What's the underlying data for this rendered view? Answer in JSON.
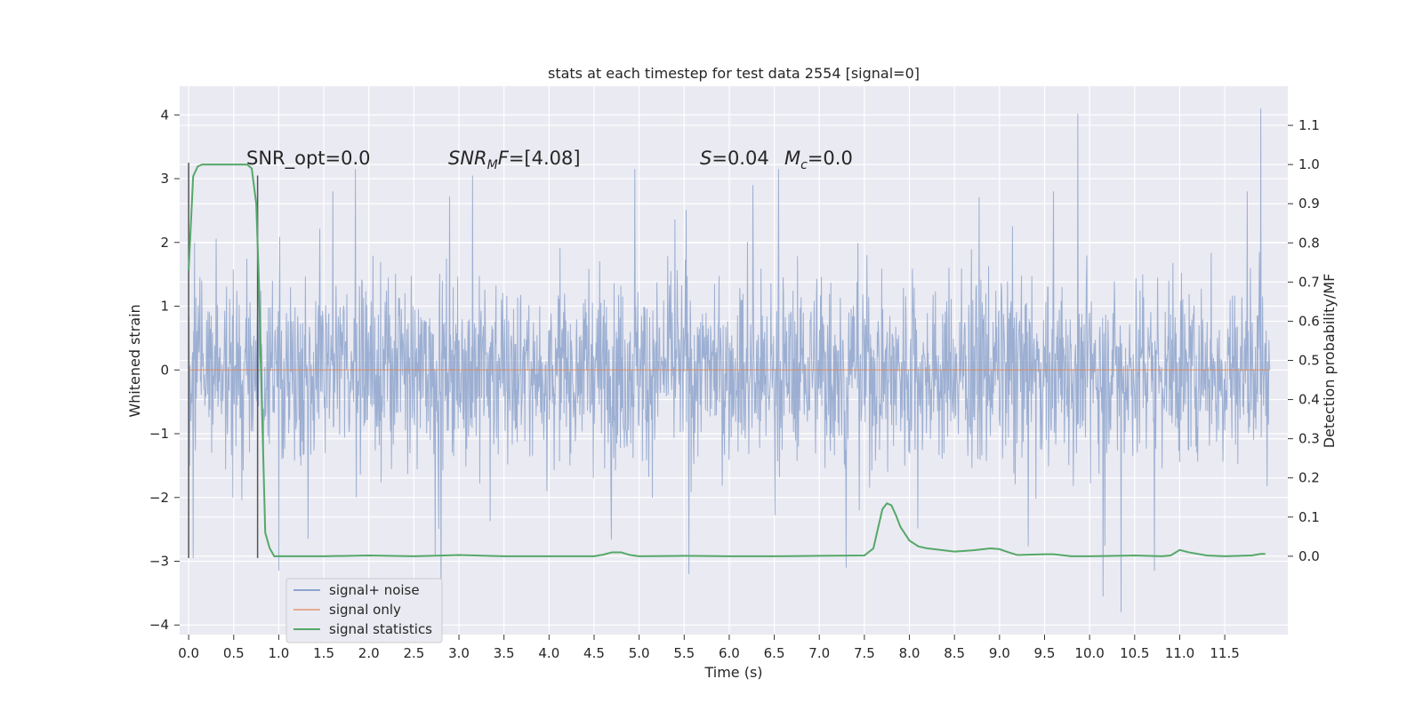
{
  "chart_data": {
    "type": "line",
    "title": "stats at each timestep for test data 2554 [signal=0]",
    "xlabel": "Time (s)",
    "ylabel": "Whitened strain",
    "ylabel_right": "Detection probability/MF",
    "xlim": [
      -0.1,
      12.2
    ],
    "ylim": [
      -4.15,
      4.45
    ],
    "ylim_right": [
      -0.2,
      1.2
    ],
    "x_ticks": [
      "0.0",
      "0.5",
      "1.0",
      "1.5",
      "2.0",
      "2.5",
      "3.0",
      "3.5",
      "4.0",
      "4.5",
      "5.0",
      "5.5",
      "6.0",
      "6.5",
      "7.0",
      "7.5",
      "8.0",
      "8.5",
      "9.0",
      "9.5",
      "10.0",
      "10.5",
      "11.0",
      "11.5"
    ],
    "y_ticks": [
      "4",
      "3",
      "2",
      "1",
      "0",
      "−1",
      "−2",
      "−3",
      "−4"
    ],
    "y_ticks_right": [
      "1.1",
      "1.0",
      "0.9",
      "0.8",
      "0.7",
      "0.6",
      "0.5",
      "0.4",
      "0.3",
      "0.2",
      "0.1",
      "0.0"
    ],
    "grid": true,
    "legend_position": "bottom-left",
    "annotations": {
      "snr_opt": "SNR_opt=0.0",
      "snr_mf_prefix": "SNR",
      "snr_mf_sub": "M",
      "snr_mf_suffix": "F=[4.08]",
      "s_label": "S",
      "s_value": "=0.04",
      "mc_label": "M",
      "mc_sub": "c",
      "mc_value": "=0.0"
    },
    "series": [
      {
        "name": "signal+ noise",
        "axis": "left",
        "color": "#8ea5cc",
        "note": "noise",
        "x_range": [
          0.0,
          12.0
        ],
        "band_approx": [
          -1.5,
          1.4
        ],
        "spikes": [
          [
            9.87,
            4.02
          ],
          [
            11.9,
            4.1
          ],
          [
            2.8,
            -3.8
          ],
          [
            10.35,
            -3.8
          ],
          [
            10.15,
            -3.55
          ],
          [
            5.55,
            -3.2
          ],
          [
            1.0,
            -3.15
          ],
          [
            7.3,
            -3.1
          ],
          [
            10.72,
            -3.15
          ],
          [
            1.6,
            2.8
          ],
          [
            9.6,
            2.8
          ],
          [
            11.75,
            2.8
          ],
          [
            4.95,
            3.15
          ],
          [
            6.55,
            3.15
          ],
          [
            1.85,
            3.15
          ],
          [
            3.15,
            3.05
          ],
          [
            0.05,
            -2.95
          ]
        ]
      },
      {
        "name": "signal only",
        "axis": "left",
        "color": "#dd8452",
        "x": [
          0.0,
          12.0
        ],
        "y": [
          0.0,
          0.0
        ]
      },
      {
        "name": "signal statistics",
        "axis": "right",
        "color": "#55a868",
        "x": [
          0.0,
          0.05,
          0.1,
          0.15,
          0.2,
          0.3,
          0.4,
          0.5,
          0.6,
          0.65,
          0.7,
          0.75,
          0.78,
          0.8,
          0.85,
          0.9,
          0.95,
          1.0,
          1.5,
          2.0,
          2.5,
          3.0,
          3.5,
          4.0,
          4.5,
          4.6,
          4.7,
          4.8,
          4.9,
          5.0,
          5.5,
          6.0,
          6.5,
          7.0,
          7.5,
          7.6,
          7.65,
          7.7,
          7.75,
          7.8,
          7.85,
          7.9,
          8.0,
          8.1,
          8.2,
          8.5,
          8.7,
          8.9,
          9.0,
          9.1,
          9.2,
          9.5,
          9.6,
          9.8,
          10.0,
          10.5,
          10.8,
          10.9,
          11.0,
          11.1,
          11.3,
          11.5,
          11.8,
          11.9,
          11.95
        ],
        "y": [
          0.73,
          0.97,
          0.995,
          1.0,
          1.0,
          1.0,
          1.0,
          1.0,
          1.0,
          1.0,
          0.99,
          0.9,
          0.7,
          0.5,
          0.06,
          0.02,
          0.0,
          0.0,
          0.0,
          0.002,
          0.0,
          0.003,
          0.0,
          0.0,
          0.0,
          0.004,
          0.01,
          0.01,
          0.003,
          0.0,
          0.001,
          0.0,
          0.0,
          0.001,
          0.002,
          0.02,
          0.07,
          0.12,
          0.135,
          0.13,
          0.105,
          0.075,
          0.04,
          0.025,
          0.02,
          0.012,
          0.015,
          0.02,
          0.018,
          0.01,
          0.003,
          0.005,
          0.005,
          0.0,
          0.0,
          0.002,
          0.0,
          0.002,
          0.016,
          0.01,
          0.002,
          0.0,
          0.002,
          0.006,
          0.006
        ]
      }
    ],
    "vertical_lines": [
      {
        "x": 0.0,
        "y": [
          -2.95,
          3.25
        ],
        "axis": "left",
        "color": "#555555"
      },
      {
        "x": 0.765,
        "y": [
          -2.95,
          3.05
        ],
        "axis": "left",
        "color": "#555555"
      }
    ]
  }
}
